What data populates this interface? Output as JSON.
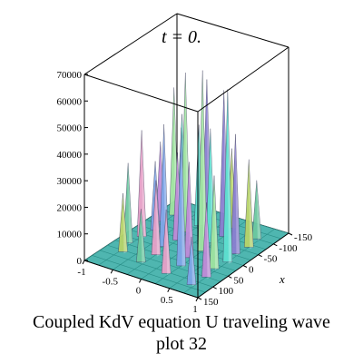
{
  "chart_data": {
    "type": "surface3d",
    "title": "t = 0.",
    "caption": [
      "Coupled KdV equation U traveling wave",
      "plot 32"
    ],
    "x_axis_label": "x",
    "y_axis_label": "",
    "z_axis_label": "",
    "x_range": [
      -150,
      150
    ],
    "y_range": [
      -1,
      1
    ],
    "z_range": [
      0,
      70000
    ],
    "z_ticks": [
      "70000",
      "60000",
      "50000",
      "40000",
      "30000",
      "20000",
      "10000",
      "0"
    ],
    "x_ticks": [
      "-150",
      "-100",
      "-50",
      "0",
      "50",
      "100",
      "150"
    ],
    "y_ticks": [
      "-1",
      "-0.5",
      "0",
      "0.5",
      "1"
    ],
    "peaks": [
      {
        "x": -130,
        "y": -0.8,
        "z": 35000
      },
      {
        "x": -95,
        "y": -0.75,
        "z": 48000
      },
      {
        "x": -60,
        "y": -0.8,
        "z": 30000
      },
      {
        "x": -25,
        "y": -0.7,
        "z": 26000
      },
      {
        "x": 10,
        "y": -0.75,
        "z": 40000
      },
      {
        "x": 45,
        "y": -0.8,
        "z": 30000
      },
      {
        "x": 80,
        "y": -0.7,
        "z": 22000
      },
      {
        "x": -120,
        "y": -0.3,
        "z": 52000
      },
      {
        "x": -85,
        "y": -0.25,
        "z": 38000
      },
      {
        "x": -50,
        "y": -0.3,
        "z": 60000
      },
      {
        "x": -15,
        "y": -0.25,
        "z": 33000
      },
      {
        "x": 20,
        "y": -0.3,
        "z": 46000
      },
      {
        "x": 55,
        "y": -0.25,
        "z": 28000
      },
      {
        "x": 95,
        "y": -0.3,
        "z": 20000
      },
      {
        "x": -110,
        "y": 0.2,
        "z": 30000
      },
      {
        "x": -75,
        "y": 0.25,
        "z": 55000
      },
      {
        "x": -40,
        "y": 0.2,
        "z": 43000
      },
      {
        "x": -5,
        "y": 0.25,
        "z": 68000
      },
      {
        "x": 30,
        "y": 0.2,
        "z": 36000
      },
      {
        "x": 65,
        "y": 0.25,
        "z": 52000
      },
      {
        "x": 105,
        "y": 0.2,
        "z": 24000
      },
      {
        "x": -100,
        "y": 0.7,
        "z": 22000
      },
      {
        "x": -65,
        "y": 0.75,
        "z": 33000
      },
      {
        "x": -30,
        "y": 0.7,
        "z": 45000
      },
      {
        "x": 5,
        "y": 0.75,
        "z": 65000
      },
      {
        "x": 40,
        "y": 0.7,
        "z": 35000
      },
      {
        "x": 75,
        "y": 0.75,
        "z": 28000
      },
      {
        "x": 115,
        "y": 0.7,
        "z": 18000
      }
    ],
    "palette": [
      "#5de0d0",
      "#9fe3a0",
      "#c08ad8",
      "#7fa6e8",
      "#e6a0c8",
      "#6cc8a0",
      "#b7d36a",
      "#8a7fd0"
    ],
    "floor_color": "#4fb6b0"
  }
}
